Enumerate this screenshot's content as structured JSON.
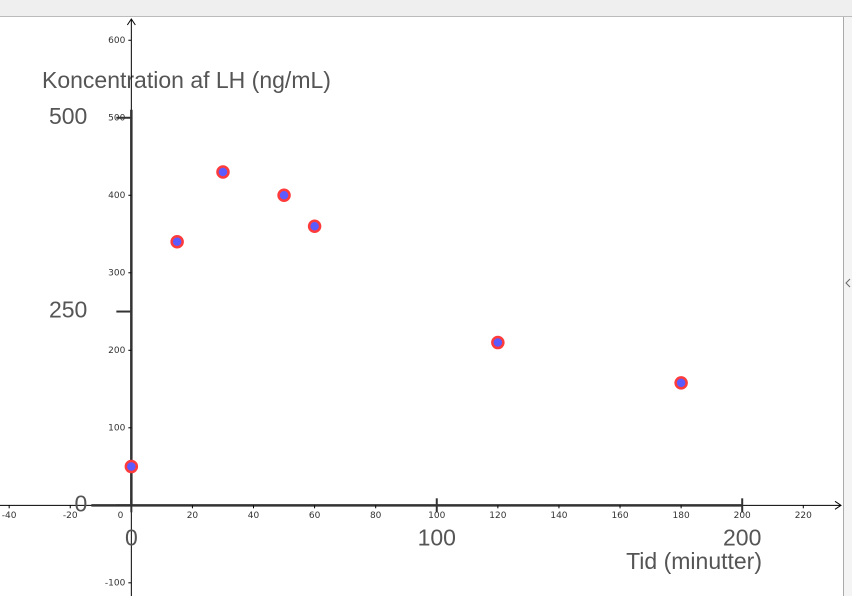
{
  "chart_data": {
    "type": "scatter",
    "x_title": "Tid (minutter)",
    "y_title": "Koncentration af LH (ng/mL)",
    "x": [
      0,
      15,
      30,
      50,
      60,
      120,
      180
    ],
    "values": [
      50,
      340,
      430,
      400,
      360,
      210,
      158
    ],
    "color": "#5b5bff",
    "edge_color": "#ff3b3b",
    "xlim": [
      -43,
      233
    ],
    "ylim": [
      -117,
      630
    ],
    "xticks": [
      -40,
      -20,
      0,
      20,
      40,
      60,
      80,
      100,
      120,
      140,
      160,
      180,
      200,
      220
    ],
    "yticks": [
      -100,
      100,
      200,
      300,
      400,
      500,
      600
    ],
    "image_xticks": [
      0,
      100,
      200
    ],
    "image_yticks": [
      0,
      250,
      500
    ]
  }
}
